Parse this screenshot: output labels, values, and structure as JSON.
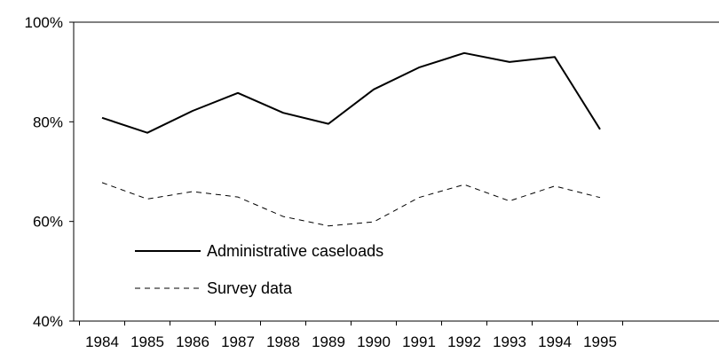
{
  "chart_data": {
    "type": "line",
    "title": "",
    "xlabel": "",
    "ylabel": "",
    "categories": [
      "1984",
      "1985",
      "1986",
      "1987",
      "1988",
      "1989",
      "1990",
      "1991",
      "1992",
      "1993",
      "1994",
      "1995"
    ],
    "ylim": [
      40,
      100
    ],
    "yticks": [
      40,
      60,
      80,
      100
    ],
    "ytick_labels": [
      "40%",
      "60%",
      "80%",
      "100%"
    ],
    "grid": false,
    "legend_position": "lower-left",
    "series": [
      {
        "name": "Administrative caseloads",
        "style": "solid",
        "color": "#000000",
        "values": [
          80.8,
          77.8,
          82.2,
          85.8,
          81.8,
          79.6,
          86.5,
          90.9,
          93.8,
          92.0,
          93.0,
          78.5
        ]
      },
      {
        "name": "Survey data",
        "style": "dashed",
        "color": "#000000",
        "values": [
          67.8,
          64.5,
          66.0,
          64.9,
          61.0,
          59.1,
          59.9,
          64.8,
          67.4,
          64.1,
          67.1,
          64.8
        ]
      }
    ]
  }
}
